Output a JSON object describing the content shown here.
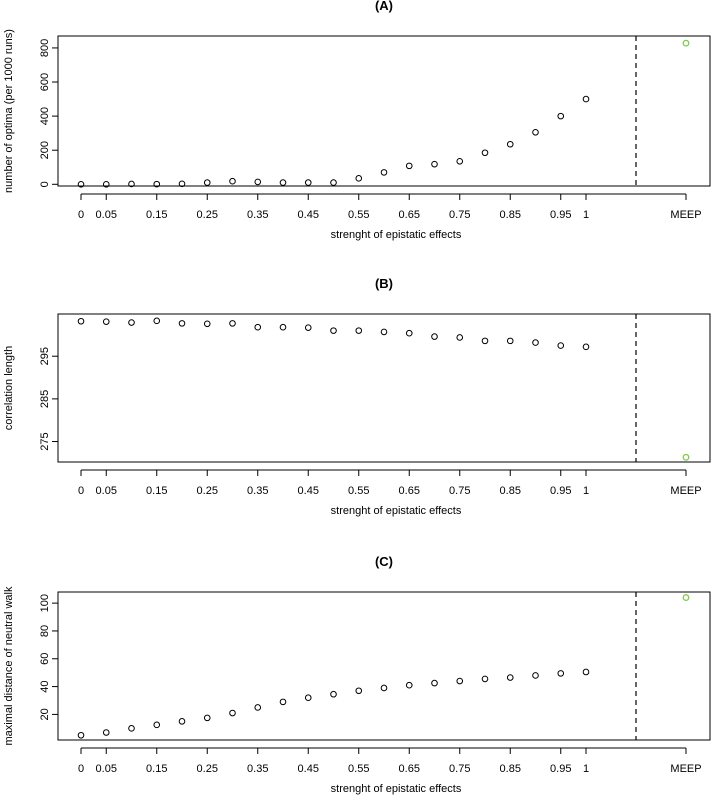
{
  "chart_data": [
    {
      "type": "scatter",
      "title": "(A)",
      "xlabel": "strenght of epistatic effects",
      "ylabel": "number of optima (per 1000 runs)",
      "x": [
        "0",
        "0.05",
        "0.1",
        "0.15",
        "0.2",
        "0.25",
        "0.3",
        "0.35",
        "0.4",
        "0.45",
        "0.5",
        "0.55",
        "0.6",
        "0.65",
        "0.7",
        "0.75",
        "0.8",
        "0.85",
        "0.9",
        "0.95",
        "1"
      ],
      "xticks": [
        "0",
        "0.05",
        "0.15",
        "0.25",
        "0.35",
        "0.45",
        "0.55",
        "0.65",
        "0.75",
        "0.85",
        "0.95",
        "1"
      ],
      "values": [
        0,
        0,
        2,
        1,
        3,
        10,
        18,
        14,
        10,
        10,
        10,
        35,
        70,
        108,
        118,
        135,
        185,
        235,
        305,
        400,
        500
      ],
      "extra_point": {
        "label": "MEEP",
        "value": 828,
        "color": "#7ac943"
      },
      "point_color": "#000000",
      "ylim": [
        -10,
        870
      ],
      "yticks": [
        0,
        200,
        400,
        600,
        800
      ],
      "dashed_separator": true,
      "grid": false
    },
    {
      "type": "scatter",
      "title": "(B)",
      "xlabel": "strenght of epistatic effects",
      "ylabel": "correlation length",
      "x": [
        "0",
        "0.05",
        "0.1",
        "0.15",
        "0.2",
        "0.25",
        "0.3",
        "0.35",
        "0.4",
        "0.45",
        "0.5",
        "0.55",
        "0.6",
        "0.65",
        "0.7",
        "0.75",
        "0.8",
        "0.85",
        "0.9",
        "0.95",
        "1"
      ],
      "xticks": [
        "0",
        "0.05",
        "0.15",
        "0.25",
        "0.35",
        "0.45",
        "0.55",
        "0.65",
        "0.75",
        "0.85",
        "0.95",
        "1"
      ],
      "values": [
        303.2,
        303.1,
        302.9,
        303.3,
        302.7,
        302.6,
        302.7,
        301.8,
        301.8,
        301.7,
        301.0,
        301.0,
        300.7,
        300.4,
        299.6,
        299.4,
        298.6,
        298.6,
        298.2,
        297.5,
        297.2
      ],
      "extra_point": {
        "label": "MEEP",
        "value": 271.3,
        "color": "#7ac943"
      },
      "point_color": "#000000",
      "ylim": [
        270.2,
        304.9
      ],
      "yticks": [
        275,
        285,
        295
      ],
      "dashed_separator": true,
      "grid": false
    },
    {
      "type": "scatter",
      "title": "(C)",
      "xlabel": "strenght of epistatic effects",
      "ylabel": "maximal distance of neutral walk",
      "x": [
        "0",
        "0.05",
        "0.1",
        "0.15",
        "0.2",
        "0.25",
        "0.3",
        "0.35",
        "0.4",
        "0.45",
        "0.5",
        "0.55",
        "0.6",
        "0.65",
        "0.7",
        "0.75",
        "0.8",
        "0.85",
        "0.9",
        "0.95",
        "1"
      ],
      "xticks": [
        "0",
        "0.05",
        "0.15",
        "0.25",
        "0.35",
        "0.45",
        "0.55",
        "0.65",
        "0.75",
        "0.85",
        "0.95",
        "1"
      ],
      "values": [
        5,
        7,
        10,
        12.5,
        15,
        17.5,
        21,
        25,
        29,
        32,
        34.5,
        37,
        39,
        41,
        42.5,
        44,
        45.5,
        46.5,
        48,
        49.5,
        50.5
      ],
      "extra_point": {
        "label": "MEEP",
        "value": 104,
        "color": "#7ac943"
      },
      "point_color": "#000000",
      "ylim": [
        1.6,
        108
      ],
      "yticks": [
        20,
        40,
        60,
        80,
        100
      ],
      "dashed_separator": true,
      "grid": false
    }
  ]
}
